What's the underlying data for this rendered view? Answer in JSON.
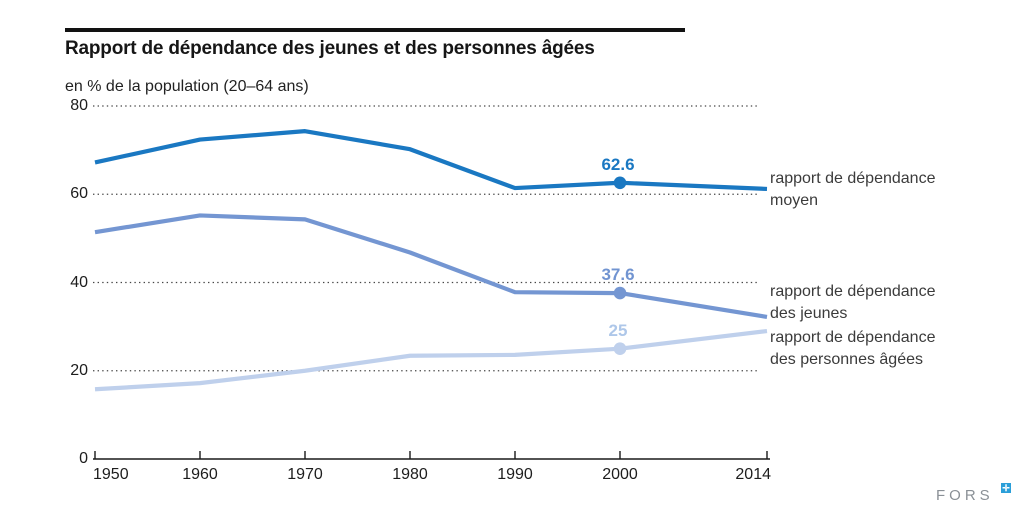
{
  "header": {
    "title": "Rapport de dépendance des jeunes et des personnes âgées",
    "subtitle": "en % de la population (20–64 ans)"
  },
  "chart_data": {
    "type": "line",
    "title": "Rapport de dépendance des jeunes et des personnes âgées",
    "ylabel": "en % de la population (20–64 ans)",
    "x": [
      1950,
      1960,
      1970,
      1980,
      1990,
      2000,
      2014
    ],
    "xtick_labels": [
      "1950",
      "1960",
      "1970",
      "1980",
      "1990",
      "2000",
      "2014"
    ],
    "yticks": [
      0,
      20,
      40,
      60,
      80
    ],
    "ylim": [
      0,
      80
    ],
    "grid": "horizontal-dotted",
    "legend_position": "right",
    "series": [
      {
        "name": "rapport de dépendance moyen",
        "color": "#1a78c2",
        "label_color": "#1a78c2",
        "values": [
          67.2,
          72.4,
          74.3,
          70.2,
          61.4,
          62.6,
          61.2
        ],
        "highlight": {
          "x": 2000,
          "label": "62.6"
        }
      },
      {
        "name": "rapport de dépendance des jeunes",
        "color": "#7496d2",
        "label_color": "#7194d1",
        "values": [
          51.4,
          55.2,
          54.3,
          46.8,
          37.8,
          37.6,
          32.2
        ],
        "highlight": {
          "x": 2000,
          "label": "37.6"
        }
      },
      {
        "name": "rapport de dépendance des personnes âgées",
        "color": "#bfd0ec",
        "label_color": "#aec7e9",
        "values": [
          15.8,
          17.2,
          20.0,
          23.4,
          23.6,
          25.0,
          29.0
        ],
        "highlight": {
          "x": 2000,
          "label": "25"
        }
      }
    ]
  },
  "legend": {
    "items": [
      {
        "line1": "rapport de dépendance",
        "line2": "moyen"
      },
      {
        "line1": "rapport de dépendance",
        "line2": "des jeunes"
      },
      {
        "line1": "rapport de dépendance",
        "line2": "des personnes âgées"
      }
    ]
  },
  "footer": {
    "logo_text": "FORS",
    "logo_mark": "✛"
  }
}
